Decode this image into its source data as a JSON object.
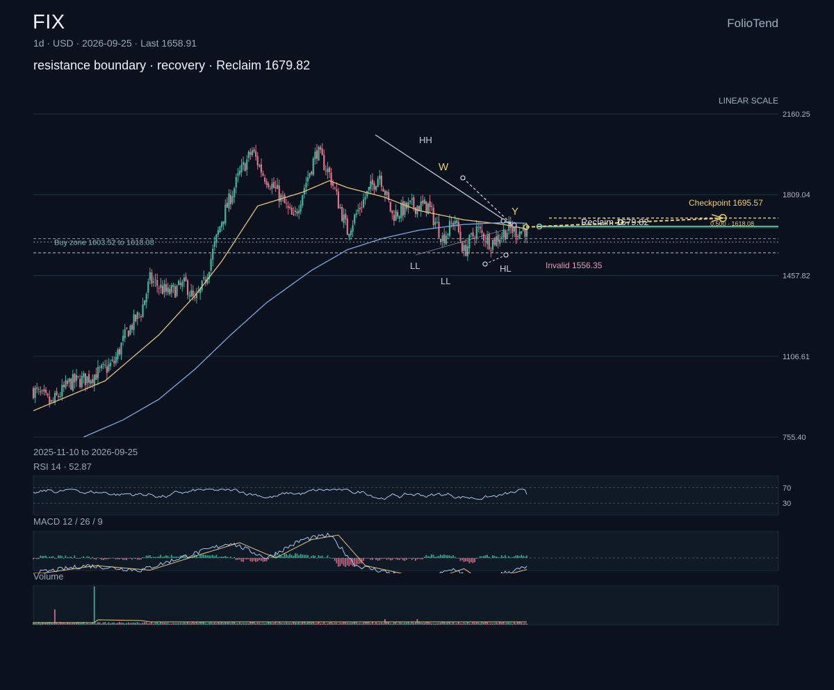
{
  "header": {
    "ticker": "FIX",
    "brand": "FolioTend",
    "meta": "1d · USD · 2026-09-25 · Last 1658.91",
    "subtitle": "resistance boundary · recovery · Reclaim 1679.82",
    "scale_label": "LINEAR SCALE",
    "date_range": "2025-11-10 to 2026-09-25"
  },
  "colors": {
    "background": "#0b121d",
    "up": "#3fb8a0",
    "down": "#e2728a",
    "ma_fast": "#e6c57a",
    "ma_slow": "#7fa8e6",
    "accent": "#f0cf6a",
    "invalid": "#e89aae",
    "reclaim": "#7fd3b4"
  },
  "chart_data": [
    {
      "type": "candlestick",
      "title": "FIX",
      "x_range": [
        "2025-11-10",
        "2026-09-25"
      ],
      "ylim": [
        755.4,
        2160.25
      ],
      "y_ticks": [
        "2160.25",
        "1809.04",
        "1457.82",
        "1106.61",
        "755.40"
      ],
      "last": 1658.91,
      "approx_close_path": [
        [
          0,
          960
        ],
        [
          10,
          900
        ],
        [
          20,
          990
        ],
        [
          30,
          1010
        ],
        [
          40,
          1050
        ],
        [
          45,
          1080
        ],
        [
          52,
          1210
        ],
        [
          60,
          1300
        ],
        [
          65,
          1440
        ],
        [
          75,
          1380
        ],
        [
          85,
          1420
        ],
        [
          90,
          1340
        ],
        [
          95,
          1420
        ],
        [
          105,
          1700
        ],
        [
          115,
          1900
        ],
        [
          122,
          2000
        ],
        [
          128,
          1900
        ],
        [
          136,
          1820
        ],
        [
          145,
          1700
        ],
        [
          150,
          1820
        ],
        [
          158,
          2000
        ],
        [
          165,
          1900
        ],
        [
          175,
          1650
        ],
        [
          185,
          1800
        ],
        [
          193,
          1900
        ],
        [
          200,
          1720
        ],
        [
          210,
          1760
        ],
        [
          220,
          1760
        ],
        [
          228,
          1620
        ],
        [
          235,
          1700
        ],
        [
          240,
          1560
        ],
        [
          247,
          1660
        ],
        [
          255,
          1600
        ],
        [
          265,
          1660
        ],
        [
          270,
          1650
        ],
        [
          275,
          1658.91
        ]
      ],
      "moving_averages": [
        {
          "name": "fast",
          "approx_path": [
            [
              0,
              870
            ],
            [
              40,
              1000
            ],
            [
              70,
              1200
            ],
            [
              90,
              1370
            ],
            [
              105,
              1520
            ],
            [
              125,
              1760
            ],
            [
              150,
              1820
            ],
            [
              165,
              1870
            ],
            [
              175,
              1840
            ],
            [
              195,
              1800
            ],
            [
              215,
              1740
            ],
            [
              240,
              1700
            ],
            [
              262,
              1680
            ],
            [
              275,
              1660
            ]
          ]
        },
        {
          "name": "slow",
          "approx_path": [
            [
              28,
              755.4
            ],
            [
              50,
              830
            ],
            [
              70,
              920
            ],
            [
              90,
              1050
            ],
            [
              110,
              1200
            ],
            [
              130,
              1340
            ],
            [
              155,
              1480
            ],
            [
              175,
              1570
            ],
            [
              195,
              1620
            ],
            [
              215,
              1655
            ],
            [
              240,
              1680
            ],
            [
              262,
              1688
            ],
            [
              275,
              1685
            ]
          ]
        }
      ],
      "levels": [
        {
          "label": "Buy zone 1603.52 to 1618.08",
          "low": 1603.52,
          "high": 1618.08
        },
        {
          "label": "Checkpoint 1695.57",
          "value": 1695.57
        },
        {
          "label": "Reclaim 1679.82",
          "value": 1679.82
        },
        {
          "label": "Invalid 1556.35",
          "value": 1556.35
        },
        {
          "label": "0.500 · 1618.08",
          "value": 1618.08
        }
      ],
      "annotations": [
        "HH",
        "W",
        "Y",
        "LL",
        "LL",
        "HL"
      ]
    },
    {
      "type": "line",
      "title": "RSI 14 · 52.87",
      "ylim": [
        0,
        100
      ],
      "y_ticks": [
        "70",
        "30"
      ],
      "last": 52.87
    },
    {
      "type": "line",
      "title": "MACD 12 / 26 / 9"
    },
    {
      "type": "bar",
      "title": "Volume"
    }
  ]
}
